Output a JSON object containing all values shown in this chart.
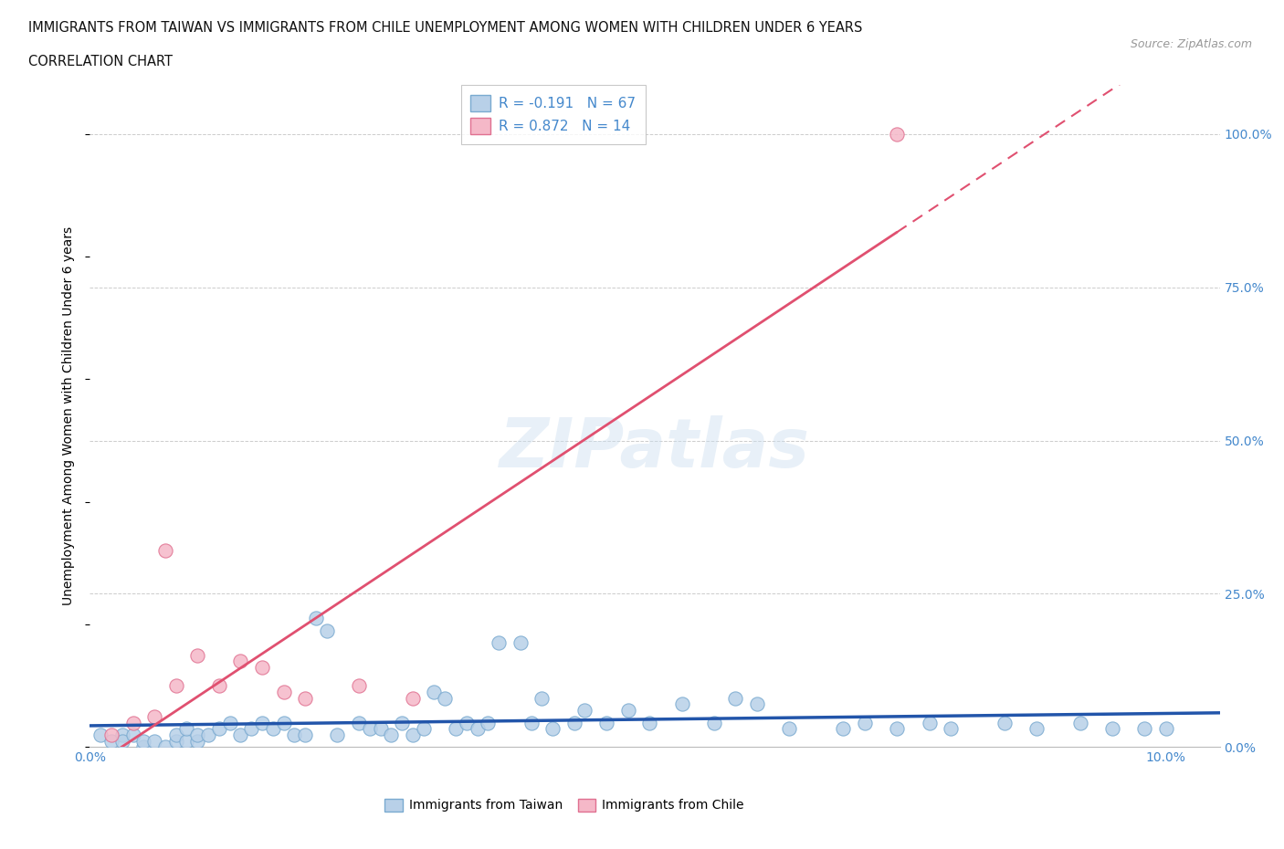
{
  "title_line1": "IMMIGRANTS FROM TAIWAN VS IMMIGRANTS FROM CHILE UNEMPLOYMENT AMONG WOMEN WITH CHILDREN UNDER 6 YEARS",
  "title_line2": "CORRELATION CHART",
  "source": "Source: ZipAtlas.com",
  "ylabel": "Unemployment Among Women with Children Under 6 years",
  "watermark": "ZIPatlas",
  "taiwan_color": "#b8d0e8",
  "taiwan_edge": "#7aaad0",
  "chile_color": "#f5b8c8",
  "chile_edge": "#e07090",
  "taiwan_line_color": "#2255aa",
  "chile_line_color": "#e05070",
  "legend_taiwan_label": "R = -0.191   N = 67",
  "legend_chile_label": "R = 0.872   N = 14",
  "legend_bottom_taiwan": "Immigrants from Taiwan",
  "legend_bottom_chile": "Immigrants from Chile",
  "right_tick_color": "#4488cc",
  "taiwan_scatter_x": [
    0.001,
    0.002,
    0.003,
    0.003,
    0.004,
    0.005,
    0.005,
    0.006,
    0.007,
    0.008,
    0.008,
    0.009,
    0.009,
    0.01,
    0.01,
    0.011,
    0.012,
    0.013,
    0.014,
    0.015,
    0.016,
    0.017,
    0.018,
    0.019,
    0.02,
    0.021,
    0.022,
    0.023,
    0.025,
    0.026,
    0.027,
    0.028,
    0.029,
    0.03,
    0.031,
    0.032,
    0.033,
    0.034,
    0.035,
    0.036,
    0.037,
    0.038,
    0.04,
    0.041,
    0.042,
    0.043,
    0.045,
    0.046,
    0.048,
    0.05,
    0.052,
    0.055,
    0.058,
    0.06,
    0.062,
    0.065,
    0.07,
    0.072,
    0.075,
    0.078,
    0.08,
    0.085,
    0.088,
    0.092,
    0.095,
    0.098,
    0.1
  ],
  "taiwan_scatter_y": [
    0.02,
    0.01,
    0.02,
    0.01,
    0.02,
    0.0,
    0.01,
    0.01,
    0.0,
    0.01,
    0.02,
    0.01,
    0.03,
    0.01,
    0.02,
    0.02,
    0.03,
    0.04,
    0.02,
    0.03,
    0.04,
    0.03,
    0.04,
    0.02,
    0.02,
    0.21,
    0.19,
    0.02,
    0.04,
    0.03,
    0.03,
    0.02,
    0.04,
    0.02,
    0.03,
    0.09,
    0.08,
    0.03,
    0.04,
    0.03,
    0.04,
    0.17,
    0.17,
    0.04,
    0.08,
    0.03,
    0.04,
    0.06,
    0.04,
    0.06,
    0.04,
    0.07,
    0.04,
    0.08,
    0.07,
    0.03,
    0.03,
    0.04,
    0.03,
    0.04,
    0.03,
    0.04,
    0.03,
    0.04,
    0.03,
    0.03,
    0.03
  ],
  "chile_scatter_x": [
    0.002,
    0.004,
    0.006,
    0.007,
    0.008,
    0.01,
    0.012,
    0.014,
    0.016,
    0.018,
    0.02,
    0.025,
    0.03,
    0.075
  ],
  "chile_scatter_y": [
    0.02,
    0.04,
    0.05,
    0.32,
    0.1,
    0.15,
    0.1,
    0.14,
    0.13,
    0.09,
    0.08,
    0.1,
    0.08,
    1.0
  ],
  "xlim": [
    0.0,
    0.105
  ],
  "ylim": [
    0.0,
    1.08
  ],
  "right_yticks": [
    0.0,
    0.25,
    0.5,
    0.75,
    1.0
  ],
  "right_ytick_labels": [
    "0.0%",
    "25.0%",
    "50.0%",
    "75.0%",
    "100.0%"
  ],
  "xtick_positions": [
    0.0,
    0.1
  ],
  "xtick_labels": [
    "0.0%",
    "10.0%"
  ]
}
